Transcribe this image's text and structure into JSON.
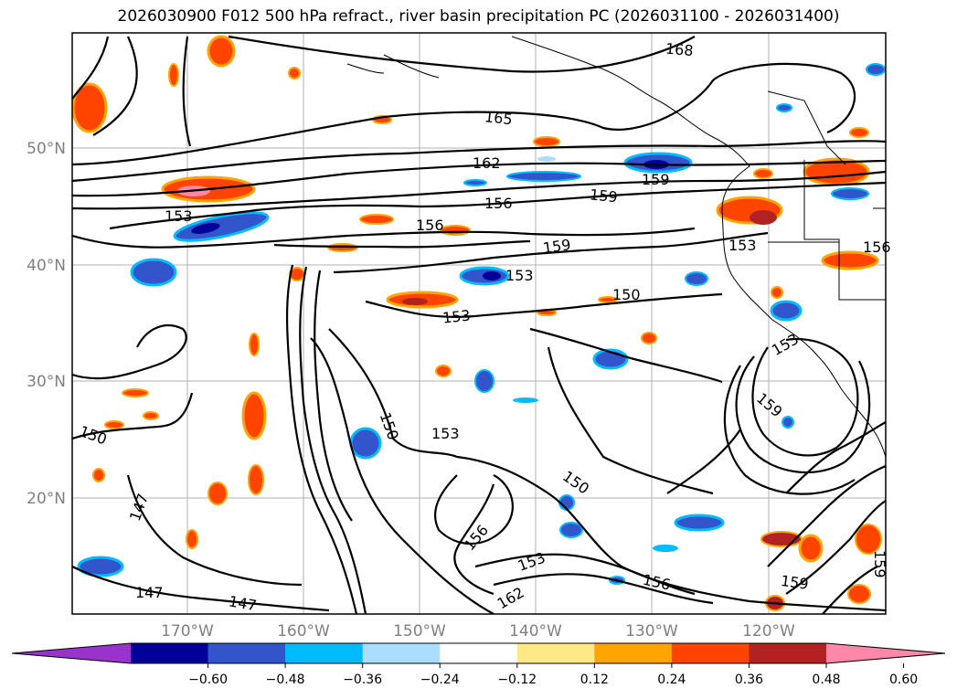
{
  "title": "2026030900 F012 500 hPa refract., river basin precipitation PC (2026031100 - 2026031400)",
  "lat_labels": [
    "50°N",
    "40°N",
    "30°N",
    "20°N"
  ],
  "lon_labels": [
    "170°W",
    "160°W",
    "150°W",
    "140°W",
    "130°W",
    "120°W"
  ],
  "contour_labels": [
    "168",
    "165",
    "162",
    "159",
    "159",
    "156",
    "156",
    "153",
    "159",
    "153",
    "150",
    "153",
    "150",
    "153",
    "150",
    "150",
    "147",
    "147",
    "147",
    "156",
    "153",
    "162",
    "156",
    "159",
    "159",
    "153",
    "159",
    "153",
    "156"
  ],
  "colorbar": {
    "ticks": [
      "−0.60",
      "−0.48",
      "−0.36",
      "−0.24",
      "−0.12",
      "0.12",
      "0.24",
      "0.36",
      "0.48",
      "0.60"
    ],
    "colors": [
      "#9933cc",
      "#000099",
      "#3355cc",
      "#00bbff",
      "#aaddff",
      "#ffffff",
      "#ffe888",
      "#ffa500",
      "#ff4400",
      "#b22222",
      "#ff88aa"
    ]
  }
}
